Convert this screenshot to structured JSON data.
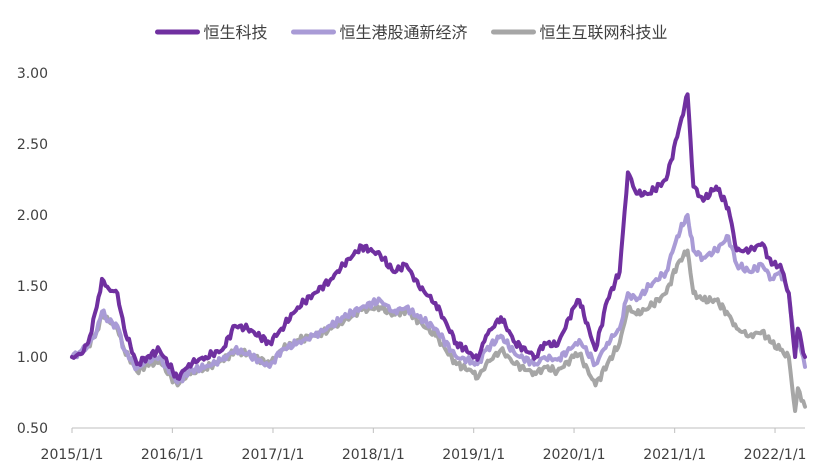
{
  "chart_data": {
    "type": "line",
    "title": "",
    "xlabel": "",
    "ylabel": "",
    "x_date_range": [
      "2015-01-01",
      "2022-04-20"
    ],
    "ylim": [
      0.5,
      3.0
    ],
    "y_ticks": [
      "0.50",
      "1.00",
      "1.50",
      "2.00",
      "2.50",
      "3.00"
    ],
    "x_ticks": [
      {
        "date": "2015-01-01",
        "label": "2015/1/1"
      },
      {
        "date": "2016-01-01",
        "label": "2016/1/1"
      },
      {
        "date": "2017-01-01",
        "label": "2017/1/1"
      },
      {
        "date": "2018-01-01",
        "label": "2018/1/1"
      },
      {
        "date": "2019-01-01",
        "label": "2019/1/1"
      },
      {
        "date": "2020-01-01",
        "label": "2020/1/1"
      },
      {
        "date": "2021-01-01",
        "label": "2021/1/1"
      },
      {
        "date": "2022-01-01",
        "label": "2022/1/1"
      }
    ],
    "grid": false,
    "legend_position": "top",
    "series": [
      {
        "name": "恒生互联网科技业",
        "color": "#a6a6a6",
        "points": [
          [
            "2015-01-01",
            1.0
          ],
          [
            "2015-02-01",
            1.03
          ],
          [
            "2015-03-01",
            1.08
          ],
          [
            "2015-04-01",
            1.18
          ],
          [
            "2015-04-20",
            1.3
          ],
          [
            "2015-05-15",
            1.25
          ],
          [
            "2015-06-15",
            1.2
          ],
          [
            "2015-07-10",
            1.05
          ],
          [
            "2015-08-25",
            0.9
          ],
          [
            "2015-10-01",
            0.95
          ],
          [
            "2015-11-15",
            0.97
          ],
          [
            "2016-01-20",
            0.8
          ],
          [
            "2016-03-01",
            0.88
          ],
          [
            "2016-05-01",
            0.92
          ],
          [
            "2016-07-01",
            0.98
          ],
          [
            "2016-08-15",
            1.04
          ],
          [
            "2016-10-01",
            1.02
          ],
          [
            "2016-12-20",
            0.95
          ],
          [
            "2017-02-01",
            1.05
          ],
          [
            "2017-04-01",
            1.12
          ],
          [
            "2017-06-01",
            1.15
          ],
          [
            "2017-08-01",
            1.2
          ],
          [
            "2017-09-15",
            1.25
          ],
          [
            "2017-11-20",
            1.33
          ],
          [
            "2018-01-26",
            1.35
          ],
          [
            "2018-03-15",
            1.3
          ],
          [
            "2018-05-01",
            1.33
          ],
          [
            "2018-06-15",
            1.25
          ],
          [
            "2018-08-15",
            1.15
          ],
          [
            "2018-10-30",
            0.95
          ],
          [
            "2018-12-25",
            0.9
          ],
          [
            "2019-01-15",
            0.85
          ],
          [
            "2019-02-15",
            0.95
          ],
          [
            "2019-04-10",
            1.05
          ],
          [
            "2019-06-01",
            0.95
          ],
          [
            "2019-08-15",
            0.88
          ],
          [
            "2019-09-15",
            0.93
          ],
          [
            "2019-11-01",
            0.9
          ],
          [
            "2019-12-31",
            1.0
          ],
          [
            "2020-01-20",
            1.02
          ],
          [
            "2020-03-19",
            0.8
          ],
          [
            "2020-05-01",
            0.95
          ],
          [
            "2020-06-15",
            1.1
          ],
          [
            "2020-07-15",
            1.35
          ],
          [
            "2020-08-15",
            1.3
          ],
          [
            "2020-10-01",
            1.35
          ],
          [
            "2020-12-01",
            1.45
          ],
          [
            "2021-01-10",
            1.65
          ],
          [
            "2021-02-17",
            1.75
          ],
          [
            "2021-03-10",
            1.45
          ],
          [
            "2021-04-15",
            1.4
          ],
          [
            "2021-06-01",
            1.4
          ],
          [
            "2021-07-15",
            1.3
          ],
          [
            "2021-08-15",
            1.2
          ],
          [
            "2021-10-01",
            1.15
          ],
          [
            "2021-11-15",
            1.18
          ],
          [
            "2021-12-20",
            1.1
          ],
          [
            "2022-01-20",
            1.05
          ],
          [
            "2022-02-20",
            1.0
          ],
          [
            "2022-03-15",
            0.62
          ],
          [
            "2022-03-25",
            0.78
          ],
          [
            "2022-04-20",
            0.65
          ]
        ]
      },
      {
        "name": "恒生港股通新经济",
        "color": "#a99bd6",
        "points": [
          [
            "2015-01-01",
            1.0
          ],
          [
            "2015-02-01",
            1.04
          ],
          [
            "2015-03-01",
            1.08
          ],
          [
            "2015-04-01",
            1.18
          ],
          [
            "2015-04-20",
            1.32
          ],
          [
            "2015-05-15",
            1.25
          ],
          [
            "2015-06-15",
            1.22
          ],
          [
            "2015-07-10",
            1.05
          ],
          [
            "2015-08-25",
            0.92
          ],
          [
            "2015-10-01",
            0.97
          ],
          [
            "2015-11-15",
            1.0
          ],
          [
            "2016-01-20",
            0.82
          ],
          [
            "2016-03-01",
            0.9
          ],
          [
            "2016-05-01",
            0.93
          ],
          [
            "2016-07-01",
            0.98
          ],
          [
            "2016-08-15",
            1.05
          ],
          [
            "2016-10-01",
            1.02
          ],
          [
            "2016-12-20",
            0.93
          ],
          [
            "2017-02-01",
            1.05
          ],
          [
            "2017-04-01",
            1.1
          ],
          [
            "2017-06-01",
            1.15
          ],
          [
            "2017-08-01",
            1.22
          ],
          [
            "2017-09-15",
            1.28
          ],
          [
            "2017-11-20",
            1.35
          ],
          [
            "2018-01-26",
            1.4
          ],
          [
            "2018-03-15",
            1.32
          ],
          [
            "2018-05-01",
            1.35
          ],
          [
            "2018-06-15",
            1.28
          ],
          [
            "2018-08-15",
            1.2
          ],
          [
            "2018-10-30",
            1.0
          ],
          [
            "2018-12-25",
            0.97
          ],
          [
            "2019-01-15",
            0.95
          ],
          [
            "2019-02-15",
            1.05
          ],
          [
            "2019-04-10",
            1.15
          ],
          [
            "2019-06-01",
            1.02
          ],
          [
            "2019-08-15",
            0.95
          ],
          [
            "2019-09-15",
            1.0
          ],
          [
            "2019-11-01",
            0.98
          ],
          [
            "2019-12-31",
            1.08
          ],
          [
            "2020-01-20",
            1.12
          ],
          [
            "2020-03-19",
            0.95
          ],
          [
            "2020-05-01",
            1.1
          ],
          [
            "2020-06-15",
            1.2
          ],
          [
            "2020-07-15",
            1.45
          ],
          [
            "2020-08-15",
            1.4
          ],
          [
            "2020-10-01",
            1.5
          ],
          [
            "2020-12-01",
            1.6
          ],
          [
            "2021-01-10",
            1.85
          ],
          [
            "2021-02-17",
            2.0
          ],
          [
            "2021-03-10",
            1.75
          ],
          [
            "2021-04-15",
            1.7
          ],
          [
            "2021-06-01",
            1.75
          ],
          [
            "2021-07-15",
            1.85
          ],
          [
            "2021-08-15",
            1.65
          ],
          [
            "2021-10-01",
            1.6
          ],
          [
            "2021-11-15",
            1.65
          ],
          [
            "2021-12-20",
            1.55
          ],
          [
            "2022-01-20",
            1.6
          ],
          [
            "2022-02-20",
            1.45
          ],
          [
            "2022-03-15",
            1.05
          ],
          [
            "2022-03-25",
            1.15
          ],
          [
            "2022-04-20",
            0.93
          ]
        ]
      },
      {
        "name": "恒生科技",
        "color": "#7030a0",
        "points": [
          [
            "2015-01-01",
            1.0
          ],
          [
            "2015-02-01",
            1.02
          ],
          [
            "2015-03-01",
            1.1
          ],
          [
            "2015-04-01",
            1.35
          ],
          [
            "2015-04-20",
            1.55
          ],
          [
            "2015-05-15",
            1.48
          ],
          [
            "2015-06-15",
            1.45
          ],
          [
            "2015-07-10",
            1.2
          ],
          [
            "2015-08-25",
            0.95
          ],
          [
            "2015-10-01",
            1.0
          ],
          [
            "2015-11-15",
            1.05
          ],
          [
            "2016-01-20",
            0.85
          ],
          [
            "2016-03-01",
            0.95
          ],
          [
            "2016-05-01",
            1.0
          ],
          [
            "2016-07-01",
            1.05
          ],
          [
            "2016-08-15",
            1.22
          ],
          [
            "2016-10-01",
            1.2
          ],
          [
            "2016-12-20",
            1.1
          ],
          [
            "2017-02-01",
            1.2
          ],
          [
            "2017-04-01",
            1.35
          ],
          [
            "2017-06-01",
            1.45
          ],
          [
            "2017-08-01",
            1.55
          ],
          [
            "2017-09-15",
            1.65
          ],
          [
            "2017-11-20",
            1.78
          ],
          [
            "2018-01-26",
            1.72
          ],
          [
            "2018-03-15",
            1.6
          ],
          [
            "2018-05-01",
            1.65
          ],
          [
            "2018-06-15",
            1.5
          ],
          [
            "2018-08-15",
            1.38
          ],
          [
            "2018-10-30",
            1.1
          ],
          [
            "2018-12-25",
            1.02
          ],
          [
            "2019-01-15",
            0.98
          ],
          [
            "2019-02-15",
            1.15
          ],
          [
            "2019-04-10",
            1.28
          ],
          [
            "2019-06-01",
            1.1
          ],
          [
            "2019-08-15",
            1.0
          ],
          [
            "2019-09-15",
            1.1
          ],
          [
            "2019-11-01",
            1.08
          ],
          [
            "2019-12-31",
            1.35
          ],
          [
            "2020-01-20",
            1.4
          ],
          [
            "2020-03-19",
            1.05
          ],
          [
            "2020-05-01",
            1.4
          ],
          [
            "2020-06-15",
            1.6
          ],
          [
            "2020-07-15",
            2.3
          ],
          [
            "2020-08-15",
            2.15
          ],
          [
            "2020-10-01",
            2.15
          ],
          [
            "2020-12-01",
            2.25
          ],
          [
            "2021-01-10",
            2.55
          ],
          [
            "2021-02-17",
            2.85
          ],
          [
            "2021-03-10",
            2.2
          ],
          [
            "2021-04-15",
            2.1
          ],
          [
            "2021-06-01",
            2.2
          ],
          [
            "2021-07-15",
            2.05
          ],
          [
            "2021-08-15",
            1.75
          ],
          [
            "2021-10-01",
            1.75
          ],
          [
            "2021-11-15",
            1.8
          ],
          [
            "2021-12-20",
            1.65
          ],
          [
            "2022-01-20",
            1.65
          ],
          [
            "2022-02-20",
            1.45
          ],
          [
            "2022-03-15",
            1.0
          ],
          [
            "2022-03-25",
            1.2
          ],
          [
            "2022-04-20",
            1.0
          ]
        ]
      }
    ],
    "legend_order": [
      "恒生科技",
      "恒生港股通新经济",
      "恒生互联网科技业"
    ]
  }
}
